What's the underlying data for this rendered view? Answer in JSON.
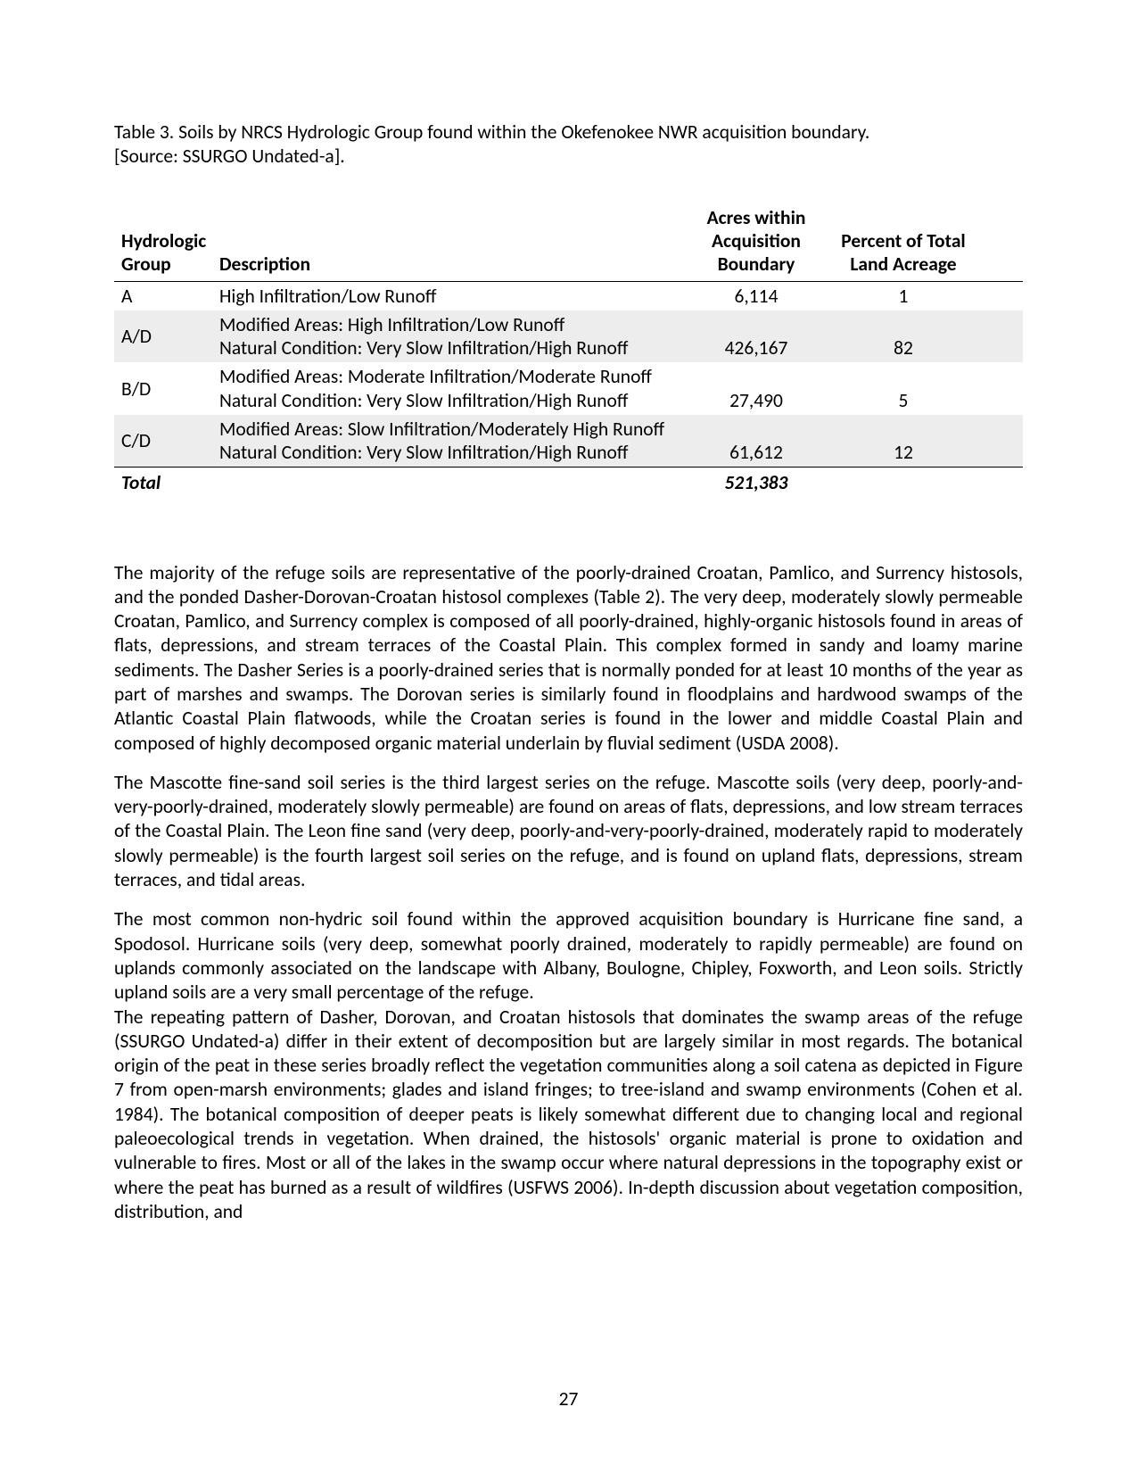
{
  "caption": {
    "line1": "Table 3. Soils by NRCS Hydrologic Group found within the Okefenokee NWR acquisition boundary.",
    "line2": "[Source: SSURGO Undated-a]."
  },
  "table": {
    "headers": {
      "group": "Hydrologic Group",
      "desc": "Description",
      "acres": "Acres within Acquisition Boundary",
      "pct": "Percent of Total Land Acreage"
    },
    "rows": [
      {
        "shade": false,
        "group": "A",
        "desc_lines": [
          "High Infiltration/Low Runoff"
        ],
        "acres": "6,114",
        "pct": "1"
      },
      {
        "shade": true,
        "group": "A/D",
        "desc_lines": [
          "Modified Areas: High Infiltration/Low Runoff",
          "Natural Condition: Very Slow Infiltration/High Runoff"
        ],
        "acres": "426,167",
        "pct": "82"
      },
      {
        "shade": false,
        "group": "B/D",
        "desc_lines": [
          "Modified Areas: Moderate Infiltration/Moderate Runoff",
          "Natural Condition: Very Slow Infiltration/High Runoff"
        ],
        "acres": "27,490",
        "pct": "5"
      },
      {
        "shade": true,
        "group": "C/D",
        "desc_lines": [
          "Modified Areas: Slow Infiltration/Moderately High Runoff",
          "Natural Condition: Very Slow Infiltration/High Runoff"
        ],
        "acres": "61,612",
        "pct": "12"
      }
    ],
    "total": {
      "label": "Total",
      "acres": "521,383"
    }
  },
  "paragraphs": {
    "p1": "The majority of the refuge soils are representative of the poorly-drained Croatan, Pamlico, and Surrency histosols, and the ponded Dasher-Dorovan-Croatan histosol complexes (Table 2). The very deep, moderately slowly permeable Croatan, Pamlico, and Surrency complex is composed of all poorly-drained, highly-organic histosols found in areas of flats, depressions, and stream terraces of the Coastal Plain. This complex formed in sandy and loamy marine sediments. The Dasher Series is a poorly-drained series that is normally ponded for at least 10 months of the year as part of marshes and swamps. The Dorovan series is similarly found in floodplains and hardwood swamps of the Atlantic Coastal Plain flatwoods, while the Croatan series is found in the lower and middle Coastal Plain and composed of highly decomposed organic material underlain by fluvial sediment (USDA 2008).",
    "p2": "The Mascotte fine-sand soil series is the third largest series on the refuge. Mascotte soils (very deep, poorly-and-very-poorly-drained, moderately slowly permeable) are found on areas of flats, depressions, and low stream terraces of the Coastal Plain. The Leon fine sand (very deep, poorly-and-very-poorly-drained, moderately rapid to moderately slowly permeable) is the fourth largest soil series on the refuge, and is found on upland flats, depressions, stream terraces, and tidal areas.",
    "p3": "The most common non-hydric soil found within the approved acquisition boundary is Hurricane fine sand, a Spodosol. Hurricane soils (very deep, somewhat poorly drained, moderately to rapidly permeable) are found on uplands commonly associated on the landscape with Albany, Boulogne, Chipley, Foxworth, and Leon soils. Strictly upland soils are a very small percentage of the refuge.",
    "p4": "The repeating pattern of Dasher, Dorovan, and Croatan histosols that dominates the swamp areas of the refuge (SSURGO Undated-a) differ in their extent of decomposition but are largely similar in most regards. The botanical origin of the peat in these series broadly reflect the vegetation communities along a soil catena as depicted in Figure 7 from  open-marsh environments; glades and island fringes; to tree-island and swamp environments (Cohen et al. 1984). The botanical composition of deeper peats is likely somewhat different due to changing local and regional paleoecological trends in vegetation. When drained, the histosols' organic material is prone to oxidation and vulnerable to fires. Most or all of the lakes in the swamp occur where natural depressions in the topography exist or where the peat has burned as a result of wildfires (USFWS 2006). In-depth discussion about vegetation composition, distribution, and"
  },
  "pageNumber": "27",
  "style": {
    "text_color": "#000000",
    "shade_color": "#ededed",
    "rule_color": "#000000",
    "font_size_pt": 16,
    "background": "#ffffff"
  }
}
